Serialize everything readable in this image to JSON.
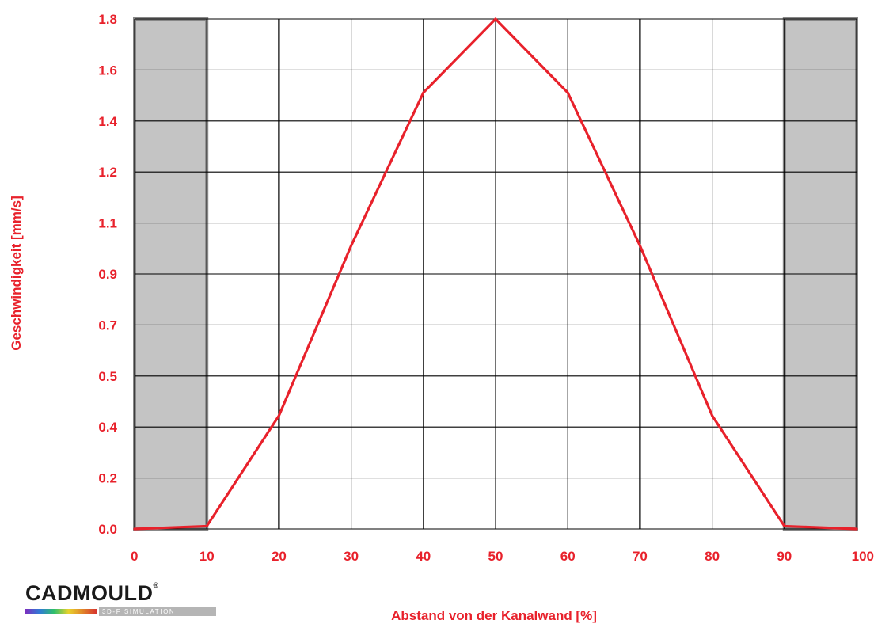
{
  "chart_data": {
    "type": "line",
    "xlabel": "Abstand von der Kanalwand [%]",
    "ylabel": "Geschwindigkeit [mm/s]",
    "xlim": [
      0,
      100
    ],
    "ylim": [
      0,
      1.8
    ],
    "x_ticks": [
      "0",
      "10",
      "20",
      "30",
      "40",
      "50",
      "60",
      "70",
      "80",
      "90",
      "100"
    ],
    "y_ticks": [
      "0.0",
      "0.2",
      "0.4",
      "0.5",
      "0.7",
      "0.9",
      "1.1",
      "1.2",
      "1.4",
      "1.6",
      "1.8"
    ],
    "grid": true,
    "shaded_regions": [
      {
        "from": 0,
        "to": 10
      },
      {
        "from": 90,
        "to": 100
      }
    ],
    "series": [
      {
        "x": [
          0,
          10,
          20,
          30,
          40,
          50,
          60,
          70,
          80,
          90,
          100
        ],
        "values": [
          0.0,
          0.01,
          0.4,
          1.0,
          1.54,
          1.8,
          1.54,
          1.0,
          0.4,
          0.01,
          0.0
        ]
      }
    ]
  },
  "logo": {
    "name": "CADMOULD",
    "mark": "®",
    "subtitle": "3D-F SIMULATION"
  },
  "colors": {
    "accent": "#e8212b",
    "grid": "#000000",
    "shade": "#c4c4c4",
    "shade_border": "#888888"
  }
}
